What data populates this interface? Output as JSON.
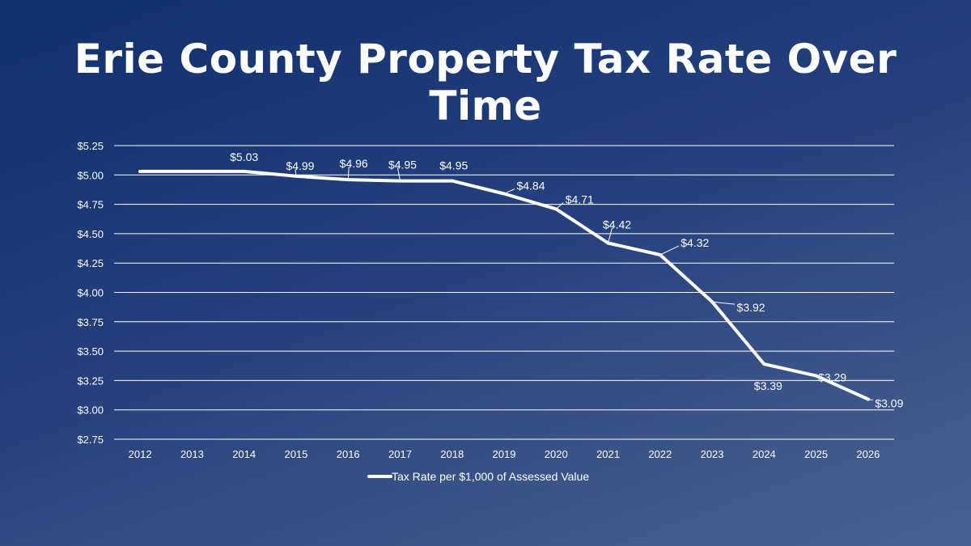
{
  "slide": {
    "title": "Erie County Property Tax Rate Over Time"
  },
  "colors": {
    "line": "#ffffff",
    "gridline": "#ffffff",
    "text": "#ffffff"
  },
  "chart_data": {
    "type": "line",
    "title": "Erie County Property Tax Rate Over Time",
    "xlabel": "",
    "ylabel": "",
    "categories": [
      "2012",
      "2013",
      "2014",
      "2015",
      "2016",
      "2017",
      "2018",
      "2019",
      "2020",
      "2021",
      "2022",
      "2023",
      "2024",
      "2025",
      "2026"
    ],
    "series": [
      {
        "name": "Tax Rate per $1,000 of Assessed Value",
        "values": [
          5.03,
          5.03,
          5.03,
          4.99,
          4.96,
          4.95,
          4.95,
          4.84,
          4.71,
          4.42,
          4.32,
          3.92,
          3.39,
          3.29,
          3.09
        ]
      }
    ],
    "data_labels": [
      {
        "category": "2014",
        "text": "$5.03"
      },
      {
        "category": "2015",
        "text": "$4.99"
      },
      {
        "category": "2016",
        "text": "$4.96"
      },
      {
        "category": "2017",
        "text": "$4.95"
      },
      {
        "category": "2018",
        "text": "$4.95"
      },
      {
        "category": "2019",
        "text": "$4.84"
      },
      {
        "category": "2020",
        "text": "$4.71"
      },
      {
        "category": "2021",
        "text": "$4.42"
      },
      {
        "category": "2022",
        "text": "$4.32"
      },
      {
        "category": "2023",
        "text": "$3.92"
      },
      {
        "category": "2024",
        "text": "$3.39"
      },
      {
        "category": "2025",
        "text": "$3.29"
      },
      {
        "category": "2026",
        "text": "$3.09"
      }
    ],
    "y_ticks": [
      "$2.75",
      "$3.00",
      "$3.25",
      "$3.50",
      "$3.75",
      "$4.00",
      "$4.25",
      "$4.50",
      "$4.75",
      "$5.00",
      "$5.25"
    ],
    "ylim": [
      2.75,
      5.25
    ],
    "y_step": 0.25,
    "grid": true,
    "legend_position": "bottom"
  }
}
